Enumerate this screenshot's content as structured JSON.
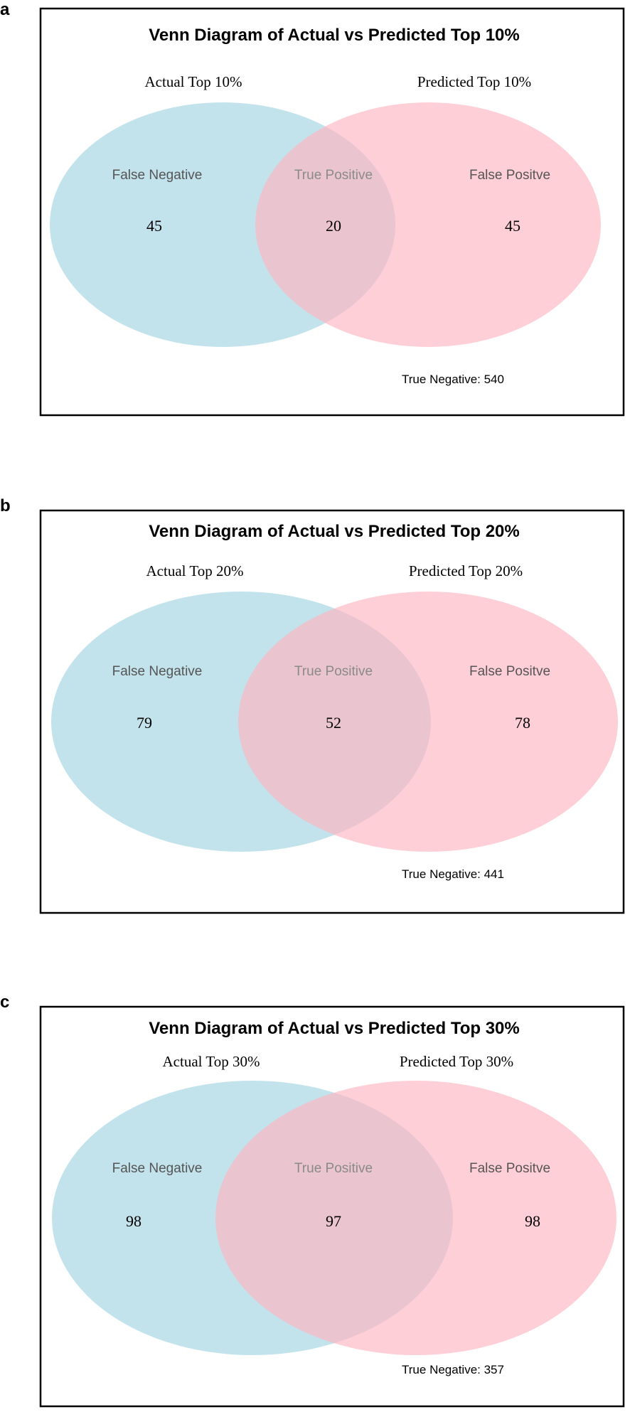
{
  "panels": [
    {
      "letter": "a",
      "title": "Venn Diagram of Actual vs Predicted Top 10%",
      "set_a_label": "Actual Top 10%",
      "set_b_label": "Predicted Top 10%",
      "regions": {
        "left": "False Negative",
        "middle": "True Positive",
        "right": "False Positve"
      },
      "counts": {
        "false_negative": "45",
        "true_positive": "20",
        "false_positive": "45"
      },
      "true_negative": "True Negative: 540"
    },
    {
      "letter": "b",
      "title": "Venn Diagram of Actual vs Predicted Top 20%",
      "set_a_label": "Actual Top 20%",
      "set_b_label": "Predicted Top 20%",
      "regions": {
        "left": "False Negative",
        "middle": "True Positive",
        "right": "False Positve"
      },
      "counts": {
        "false_negative": "79",
        "true_positive": "52",
        "false_positive": "78"
      },
      "true_negative": "True Negative: 441"
    },
    {
      "letter": "c",
      "title": "Venn Diagram of Actual vs Predicted Top 30%",
      "set_a_label": "Actual Top 30%",
      "set_b_label": "Predicted Top 30%",
      "regions": {
        "left": "False Negative",
        "middle": "True Positive",
        "right": "False Positve"
      },
      "counts": {
        "false_negative": "98",
        "true_positive": "97",
        "false_positive": "98"
      },
      "true_negative": "True Negative: 357"
    }
  ],
  "colors": {
    "actual_fill": "#add8e6",
    "predicted_fill": "#ffb6c1",
    "region_text": "#555555",
    "overlap_text": "#8a8a8a"
  }
}
